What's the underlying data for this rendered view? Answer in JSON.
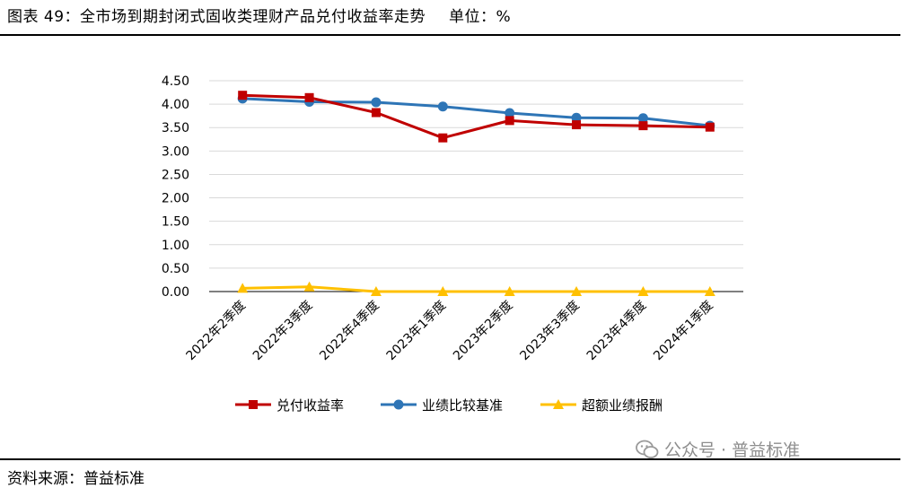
{
  "header": {
    "title": "图表 49：全市场到期封闭式固收类理财产品兑付收益率走势",
    "unit": "单位：%"
  },
  "footer": {
    "source": "资料来源：普益标准",
    "watermark": "公众号 · 普益标准"
  },
  "chart_data": {
    "type": "line",
    "title": "",
    "xlabel": "",
    "ylabel": "",
    "ylim": [
      0,
      4.5
    ],
    "ytick_step": 0.5,
    "yticks": [
      "0.00",
      "0.50",
      "1.00",
      "1.50",
      "2.00",
      "2.50",
      "3.00",
      "3.50",
      "4.00",
      "4.50"
    ],
    "grid": true,
    "legend_position": "bottom",
    "categories": [
      "2022年2季度",
      "2022年3季度",
      "2022年4季度",
      "2023年1季度",
      "2023年2季度",
      "2023年3季度",
      "2023年4季度",
      "2024年1季度"
    ],
    "series": [
      {
        "name": "兑付收益率",
        "color": "#c00000",
        "marker": "square",
        "values": [
          4.19,
          4.14,
          3.82,
          3.28,
          3.65,
          3.56,
          3.54,
          3.51
        ]
      },
      {
        "name": "业绩比较基准",
        "color": "#2e75b6",
        "marker": "circle",
        "values": [
          4.12,
          4.05,
          4.04,
          3.95,
          3.81,
          3.71,
          3.7,
          3.54
        ]
      },
      {
        "name": "超额业绩报酬",
        "color": "#ffc000",
        "marker": "triangle",
        "values": [
          0.07,
          0.1,
          0.0,
          0.0,
          0.0,
          0.0,
          0.0,
          0.0
        ]
      }
    ]
  }
}
